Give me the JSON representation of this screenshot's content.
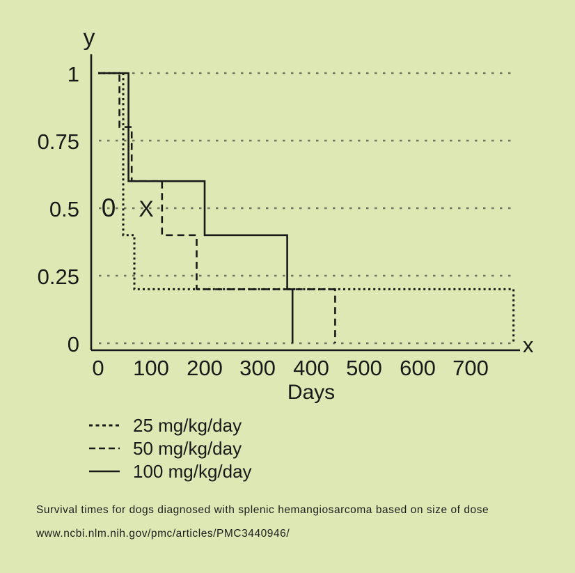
{
  "chart_data": {
    "type": "line",
    "subtype": "kaplan-meier-step",
    "title": "Survival times for dogs diagnosed with splenic hemangiosarcoma based on size of dose",
    "xlabel": "Days",
    "ylabel": "",
    "x_axis_letter": "x",
    "y_axis_letter": "y",
    "xlim": [
      0,
      790
    ],
    "ylim": [
      0,
      1
    ],
    "grid": "horizontal-dotted",
    "x_tick_labels": [
      "0",
      "100",
      "200",
      "300",
      "400",
      "500",
      "600",
      "700"
    ],
    "x_tick_values": [
      0,
      100,
      200,
      300,
      400,
      500,
      600,
      700
    ],
    "y_tick_labels": [
      "1",
      "0.75",
      "0.5",
      "0.25",
      "0"
    ],
    "y_tick_values": [
      1,
      0.75,
      0.5,
      0.25,
      0
    ],
    "series": [
      {
        "name": "25 mg/kg/day",
        "line_style": "dotted",
        "points": [
          [
            0,
            1
          ],
          [
            47,
            1
          ],
          [
            47,
            0.4
          ],
          [
            68,
            0.4
          ],
          [
            68,
            0.2
          ],
          [
            780,
            0.2
          ],
          [
            780,
            0
          ]
        ]
      },
      {
        "name": "50 mg/kg/day",
        "line_style": "dashed",
        "points": [
          [
            0,
            1
          ],
          [
            40,
            1
          ],
          [
            40,
            0.8
          ],
          [
            63,
            0.8
          ],
          [
            63,
            0.6
          ],
          [
            120,
            0.6
          ],
          [
            120,
            0.4
          ],
          [
            185,
            0.4
          ],
          [
            185,
            0.2
          ],
          [
            445,
            0.2
          ],
          [
            445,
            0
          ]
        ]
      },
      {
        "name": "100 mg/kg/day",
        "line_style": "solid",
        "points": [
          [
            0,
            1
          ],
          [
            57,
            1
          ],
          [
            57,
            0.6
          ],
          [
            200,
            0.6
          ],
          [
            200,
            0.4
          ],
          [
            355,
            0.4
          ],
          [
            355,
            0.2
          ],
          [
            365,
            0.2
          ],
          [
            365,
            0
          ]
        ]
      }
    ],
    "annotations": [
      {
        "text": "0"
      },
      {
        "text": "X"
      }
    ],
    "legend_position": "bottom-left"
  },
  "caption": {
    "line1": "Survival times for dogs diagnosed with splenic hemangiosarcoma based on size of dose",
    "line2": "www.ncbi.nlm.nih.gov/pmc/articles/PMC3440946/"
  },
  "colors": {
    "background": "#dee8b4",
    "line": "#191919",
    "grid": "#70745c",
    "text": "#1c1c1c"
  }
}
